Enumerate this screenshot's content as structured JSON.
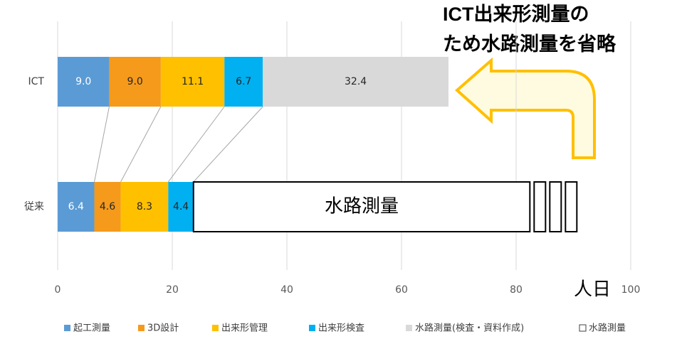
{
  "chart_data": {
    "type": "stacked-bar-horizontal",
    "categories": [
      "ICT",
      "従来"
    ],
    "series": [
      {
        "name": "起工測量",
        "color": "#5b9bd5",
        "values": [
          9.0,
          6.4
        ],
        "value_labels": [
          "9.0",
          "6.4"
        ]
      },
      {
        "name": "3D設計",
        "color": "#f59a1b",
        "values": [
          9.0,
          4.6
        ],
        "value_labels": [
          "9.0",
          "4.6"
        ]
      },
      {
        "name": "出来形管理",
        "color": "#ffc000",
        "values": [
          11.1,
          8.3
        ],
        "value_labels": [
          "11.1",
          "8.3"
        ]
      },
      {
        "name": "出来形検査",
        "color": "#00b0f0",
        "values": [
          6.7,
          4.4
        ],
        "value_labels": [
          "6.7",
          "4.4"
        ]
      },
      {
        "name": "水路測量(検査・資料作成)",
        "color": "#d9d9d9",
        "values": [
          32.4,
          null
        ],
        "value_labels": [
          "32.4",
          null
        ]
      },
      {
        "name": "水路測量",
        "color": "#ffffff",
        "values": [
          null,
          58.7
        ]
      }
    ],
    "xlim": [
      0,
      100
    ],
    "xticks": [
      0,
      20,
      40,
      60,
      80,
      100
    ],
    "grid": true,
    "x_unit": "人日",
    "annotation": [
      "ICT出来形測量の",
      "ため水路測量を省略"
    ]
  }
}
